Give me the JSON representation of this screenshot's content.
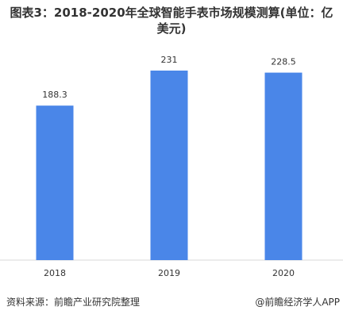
{
  "chart_data": {
    "type": "bar",
    "title": "图表3：2018-2020年全球智能手表市场规模测算(单位：亿美元)",
    "categories": [
      "2018",
      "2019",
      "2020"
    ],
    "values": [
      188.3,
      231,
      228.5
    ],
    "color": "#4a86e8"
  },
  "footer": {
    "source": "资料来源：前瞻产业研究院整理",
    "brand": "@前瞻经济学人APP"
  }
}
